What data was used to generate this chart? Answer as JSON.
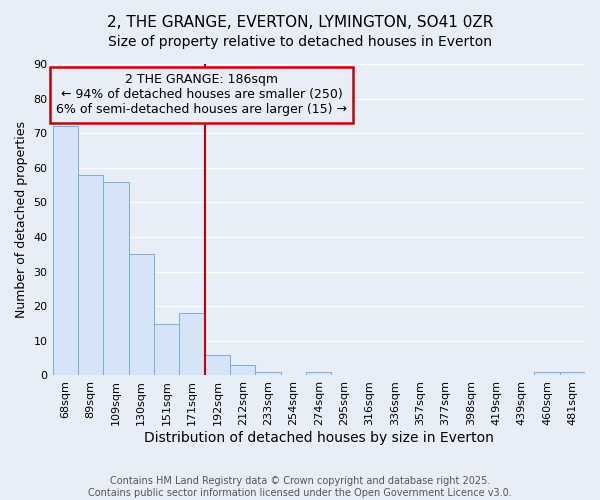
{
  "title": "2, THE GRANGE, EVERTON, LYMINGTON, SO41 0ZR",
  "subtitle": "Size of property relative to detached houses in Everton",
  "xlabel": "Distribution of detached houses by size in Everton",
  "ylabel": "Number of detached properties",
  "categories": [
    "68sqm",
    "89sqm",
    "109sqm",
    "130sqm",
    "151sqm",
    "171sqm",
    "192sqm",
    "212sqm",
    "233sqm",
    "254sqm",
    "274sqm",
    "295sqm",
    "316sqm",
    "336sqm",
    "357sqm",
    "377sqm",
    "398sqm",
    "419sqm",
    "439sqm",
    "460sqm",
    "481sqm"
  ],
  "values": [
    72,
    58,
    56,
    35,
    15,
    18,
    6,
    3,
    1,
    0,
    1,
    0,
    0,
    0,
    0,
    0,
    0,
    0,
    0,
    1,
    1
  ],
  "bar_color": "#d6e4f7",
  "bar_edge_color": "#7aafd4",
  "red_line_index": 6,
  "red_line_color": "#cc0000",
  "ylim": [
    0,
    90
  ],
  "yticks": [
    0,
    10,
    20,
    30,
    40,
    50,
    60,
    70,
    80,
    90
  ],
  "annotation_title": "2 THE GRANGE: 186sqm",
  "annotation_line1": "← 94% of detached houses are smaller (250)",
  "annotation_line2": "6% of semi-detached houses are larger (15) →",
  "annotation_box_color": "#cc0000",
  "background_color": "#e8eef8",
  "grid_color": "#ffffff",
  "footnote1": "Contains HM Land Registry data © Crown copyright and database right 2025.",
  "footnote2": "Contains public sector information licensed under the Open Government Licence v3.0.",
  "title_fontsize": 11,
  "subtitle_fontsize": 10,
  "xlabel_fontsize": 10,
  "ylabel_fontsize": 9,
  "tick_fontsize": 8,
  "annotation_fontsize": 9,
  "footnote_fontsize": 7
}
